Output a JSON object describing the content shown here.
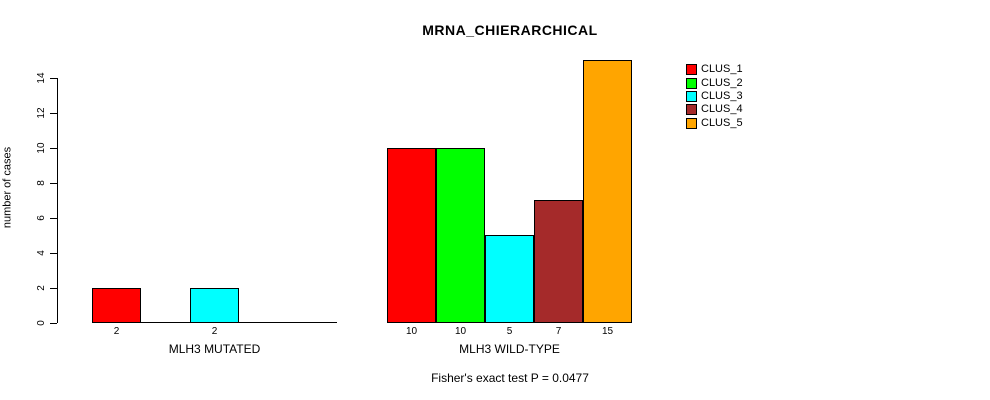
{
  "chart_data": {
    "type": "bar",
    "title": "MRNA_CHIERARCHICAL",
    "ylabel": "number of cases",
    "xlabel": "",
    "ylim": [
      0,
      15
    ],
    "yticks": [
      0,
      2,
      4,
      6,
      8,
      10,
      12,
      14
    ],
    "grid": false,
    "legend_position": "right-outside",
    "series": [
      {
        "name": "CLUS_1",
        "color": "#ff0000"
      },
      {
        "name": "CLUS_2",
        "color": "#00ff00"
      },
      {
        "name": "CLUS_3",
        "color": "#00ffff"
      },
      {
        "name": "CLUS_4",
        "color": "#a52a2a"
      },
      {
        "name": "CLUS_5",
        "color": "#ffa500"
      }
    ],
    "groups": [
      {
        "label": "MLH3 MUTATED",
        "values": [
          2,
          0,
          2,
          0,
          0
        ],
        "bar_labels": [
          "2",
          "",
          "2",
          "",
          ""
        ]
      },
      {
        "label": "MLH3 WILD-TYPE",
        "values": [
          10,
          10,
          5,
          7,
          15
        ],
        "bar_labels": [
          "10",
          "10",
          "5",
          "7",
          "15"
        ]
      }
    ],
    "annotation": "Fisher's exact test P = 0.0477"
  },
  "colors": {
    "axis": "#000000",
    "text": "#000000",
    "background": "#ffffff"
  }
}
